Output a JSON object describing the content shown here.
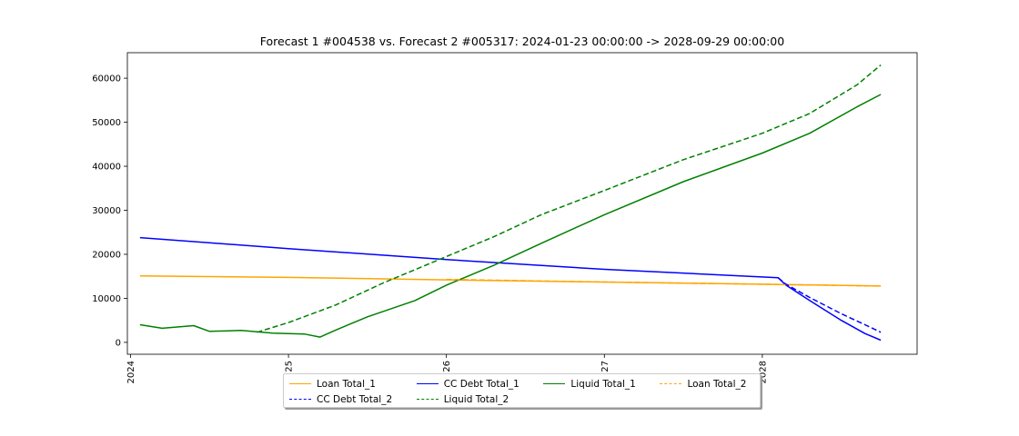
{
  "chart_data": {
    "type": "line",
    "title": "Forecast 1 #004538 vs. Forecast 2 #005317: 2024-01-23 00:00:00 -> 2028-09-29 00:00:00",
    "xlabel": "",
    "ylabel": "",
    "xlim": [
      2023.98,
      2028.98
    ],
    "ylim": [
      -2700,
      65800
    ],
    "x_ticks": [
      2024,
      2025,
      2026,
      2027,
      2028
    ],
    "x_tick_labels": [
      "2024",
      "25",
      "26",
      "27",
      "2028"
    ],
    "y_ticks": [
      0,
      10000,
      20000,
      30000,
      40000,
      50000,
      60000
    ],
    "y_tick_labels": [
      "0",
      "10000",
      "20000",
      "30000",
      "40000",
      "50000",
      "60000"
    ],
    "grid": false,
    "legend_position": "bottom-center",
    "series": [
      {
        "name": "Loan Total_1",
        "color": "#ffa500",
        "dash": "solid",
        "points": [
          [
            2024.06,
            15100
          ],
          [
            2025.0,
            14750
          ],
          [
            2026.0,
            14200
          ],
          [
            2027.0,
            13700
          ],
          [
            2028.0,
            13200
          ],
          [
            2028.75,
            12800
          ]
        ]
      },
      {
        "name": "CC Debt Total_1",
        "color": "#0000ff",
        "dash": "solid",
        "points": [
          [
            2024.06,
            23800
          ],
          [
            2025.0,
            21300
          ],
          [
            2026.0,
            18800
          ],
          [
            2027.0,
            16600
          ],
          [
            2028.1,
            14700
          ],
          [
            2028.15,
            13000
          ],
          [
            2028.3,
            9500
          ],
          [
            2028.5,
            5000
          ],
          [
            2028.65,
            2000
          ],
          [
            2028.75,
            500
          ]
        ]
      },
      {
        "name": "Liquid Total_1",
        "color": "#008000",
        "dash": "solid",
        "points": [
          [
            2024.06,
            4000
          ],
          [
            2024.2,
            3200
          ],
          [
            2024.4,
            3800
          ],
          [
            2024.5,
            2500
          ],
          [
            2024.7,
            2700
          ],
          [
            2024.9,
            2100
          ],
          [
            2025.1,
            1900
          ],
          [
            2025.2,
            1200
          ],
          [
            2025.3,
            2800
          ],
          [
            2025.5,
            5800
          ],
          [
            2025.8,
            9500
          ],
          [
            2026.0,
            13000
          ],
          [
            2026.3,
            17500
          ],
          [
            2026.6,
            22500
          ],
          [
            2027.0,
            29000
          ],
          [
            2027.5,
            36500
          ],
          [
            2028.0,
            43000
          ],
          [
            2028.3,
            47500
          ],
          [
            2028.6,
            53500
          ],
          [
            2028.75,
            56300
          ]
        ]
      },
      {
        "name": "Loan Total_2",
        "color": "#ffa500",
        "dash": "dashed",
        "points": [
          [
            2026.0,
            14300
          ],
          [
            2027.0,
            13700
          ],
          [
            2028.0,
            13200
          ],
          [
            2028.75,
            12800
          ]
        ]
      },
      {
        "name": "CC Debt Total_2",
        "color": "#0000ff",
        "dash": "dashed",
        "points": [
          [
            2028.1,
            14700
          ],
          [
            2028.15,
            13200
          ],
          [
            2028.3,
            10200
          ],
          [
            2028.5,
            6500
          ],
          [
            2028.65,
            4000
          ],
          [
            2028.75,
            2300
          ]
        ]
      },
      {
        "name": "Liquid Total_2",
        "color": "#008000",
        "dash": "dashed",
        "points": [
          [
            2024.8,
            2300
          ],
          [
            2025.0,
            4500
          ],
          [
            2025.3,
            8500
          ],
          [
            2025.6,
            13500
          ],
          [
            2025.9,
            18000
          ],
          [
            2026.0,
            19500
          ],
          [
            2026.3,
            24000
          ],
          [
            2026.6,
            29000
          ],
          [
            2027.0,
            34500
          ],
          [
            2027.5,
            41500
          ],
          [
            2028.0,
            47500
          ],
          [
            2028.3,
            52000
          ],
          [
            2028.6,
            58500
          ],
          [
            2028.75,
            63000
          ]
        ]
      }
    ]
  }
}
